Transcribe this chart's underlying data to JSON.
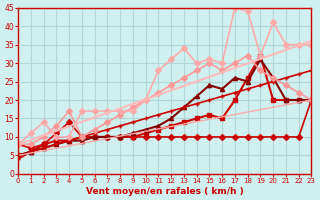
{
  "background_color": "#d0f0f0",
  "grid_color": "#b0d8d8",
  "xlabel": "Vent moyen/en rafales ( km/h )",
  "xlabel_color": "#cc0000",
  "tick_color": "#cc0000",
  "xlim": [
    0,
    23
  ],
  "ylim": [
    0,
    45
  ],
  "yticks": [
    0,
    5,
    10,
    15,
    20,
    25,
    30,
    35,
    40,
    45
  ],
  "xticks": [
    0,
    1,
    2,
    3,
    4,
    5,
    6,
    7,
    8,
    9,
    10,
    11,
    12,
    13,
    14,
    15,
    16,
    17,
    18,
    19,
    20,
    21,
    22,
    23
  ],
  "lines": [
    {
      "x": [
        0,
        1,
        2,
        3,
        4,
        5,
        6,
        7,
        8,
        9,
        10,
        11,
        12,
        13,
        14,
        15,
        16,
        17,
        18,
        19,
        20,
        21,
        22,
        23
      ],
      "y": [
        8,
        7,
        8,
        11,
        14,
        10,
        10,
        10,
        10,
        10,
        10,
        10,
        10,
        10,
        10,
        10,
        10,
        10,
        10,
        10,
        10,
        10,
        10,
        20
      ],
      "color": "#cc0000",
      "lw": 1.2,
      "marker": "D",
      "ms": 3
    },
    {
      "x": [
        0,
        1,
        2,
        3,
        4,
        5,
        6,
        7,
        8,
        9,
        10,
        11,
        12,
        13,
        14,
        15,
        16,
        17,
        18,
        19,
        20,
        21,
        22,
        23
      ],
      "y": [
        5,
        6,
        8,
        9,
        9,
        10,
        10,
        10,
        10,
        10,
        11,
        12,
        13,
        14,
        15,
        16,
        15,
        20,
        26,
        32,
        20,
        20,
        20,
        20
      ],
      "color": "#cc0000",
      "lw": 1.5,
      "marker": "s",
      "ms": 3
    },
    {
      "x": [
        0,
        1,
        2,
        3,
        4,
        5,
        6,
        7,
        8,
        9,
        10,
        11,
        12,
        13,
        14,
        15,
        16,
        17,
        18,
        19,
        20,
        21,
        22,
        23
      ],
      "y": [
        5,
        6,
        7,
        8,
        9,
        9,
        10,
        10,
        10,
        11,
        12,
        13,
        15,
        18,
        21,
        24,
        23,
        26,
        25,
        31,
        26,
        20,
        20,
        20
      ],
      "color": "#880000",
      "lw": 1.5,
      "marker": "^",
      "ms": 3
    },
    {
      "x": [
        0,
        1,
        2,
        3,
        4,
        5,
        6,
        7,
        8,
        9,
        10,
        11,
        12,
        13,
        14,
        15,
        16,
        17,
        18,
        19,
        20,
        21,
        22,
        23
      ],
      "y": [
        4,
        6,
        7,
        8,
        9,
        10,
        11,
        12,
        13,
        14,
        15,
        16,
        17,
        18,
        19,
        20,
        21,
        22,
        23,
        24,
        25,
        26,
        27,
        28
      ],
      "color": "#cc0000",
      "lw": 1.2,
      "marker": "+",
      "ms": 3
    },
    {
      "x": [
        0,
        1,
        2,
        3,
        4,
        5,
        6,
        7,
        8,
        9,
        10,
        11,
        12,
        13,
        14,
        15,
        16,
        17,
        18,
        19,
        20,
        21,
        22,
        23
      ],
      "y": [
        8,
        8,
        10,
        13,
        17,
        10,
        12,
        14,
        16,
        18,
        20,
        22,
        24,
        26,
        28,
        30,
        28,
        30,
        32,
        28,
        26,
        24,
        22,
        20
      ],
      "color": "#ff9999",
      "lw": 1.2,
      "marker": "D",
      "ms": 3
    },
    {
      "x": [
        0,
        1,
        2,
        3,
        4,
        5,
        6,
        7,
        8,
        9,
        10,
        11,
        12,
        13,
        14,
        15,
        16,
        17,
        18,
        19,
        20,
        21,
        22,
        23
      ],
      "y": [
        8,
        11,
        14,
        10,
        10,
        17,
        17,
        17,
        17,
        17,
        20,
        28,
        31,
        34,
        30,
        31,
        30,
        45,
        44,
        32,
        41,
        35,
        35,
        35
      ],
      "color": "#ffaaaa",
      "lw": 1.2,
      "marker": "D",
      "ms": 3
    },
    {
      "x": [
        0,
        23
      ],
      "y": [
        8,
        36
      ],
      "color": "#ffbbbb",
      "lw": 1.5,
      "marker": null,
      "ms": 0
    },
    {
      "x": [
        0,
        23
      ],
      "y": [
        5,
        20
      ],
      "color": "#ffaaaa",
      "lw": 1.0,
      "marker": null,
      "ms": 0
    }
  ],
  "wind_arrows": [
    0,
    1,
    2,
    3,
    4,
    5,
    6,
    7,
    8,
    9,
    10,
    11,
    12,
    13,
    14,
    15,
    16,
    17,
    18,
    19,
    20,
    21,
    22,
    23
  ]
}
